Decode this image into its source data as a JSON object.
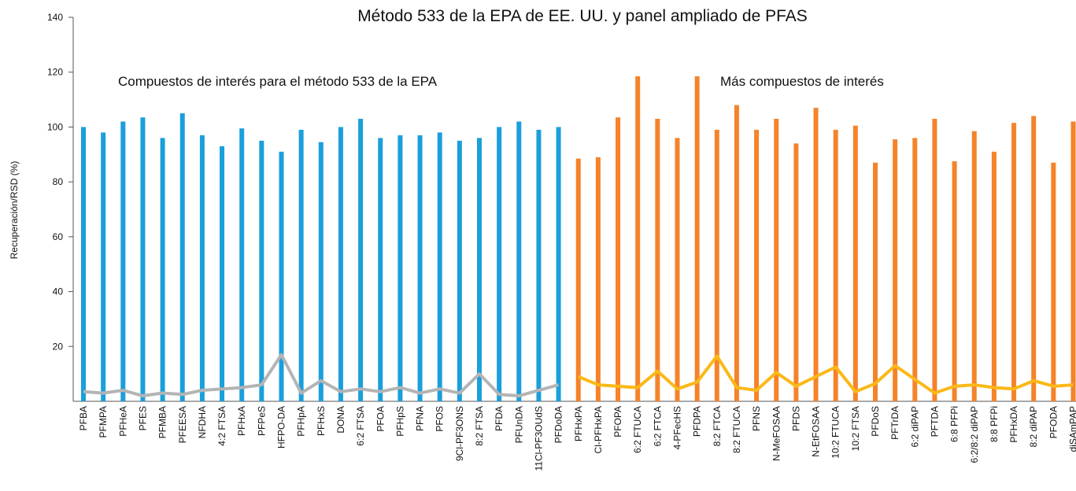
{
  "chart_data": {
    "type": "bar",
    "title": "Método 533 de la EPA de EE. UU. y panel ampliado de PFAS",
    "y_label": "Recuperación/RSD (%)",
    "annotations": [
      "Compuestos de interés para el método 533 de la EPA",
      "Más compuestos de interés"
    ],
    "categories": [
      "PFBA",
      "PFMPA",
      "PFHeA",
      "PFES",
      "PFMBA",
      "PFEESA",
      "NFDHA",
      "4:2 FTSA",
      "PFHxA",
      "PFPeS",
      "HFPO-DA",
      "PFHpA",
      "PFHxS",
      "DONA",
      "6:2 FTSA",
      "PFOA",
      "PFHpS",
      "PFNA",
      "PFOS",
      "9Cl-PF3ONS",
      "8:2 FTSA",
      "PFDA",
      "PFUnDA",
      "11Cl-PF3OUdS",
      "PFDoDA",
      "PFHxPA",
      "Cl-PFHxPA",
      "PFOPA",
      "6:2 FTUCA",
      "6:2 FTCA",
      "4-PFecHS",
      "PFDPA",
      "8:2 FTCA",
      "8:2 FTUCA",
      "PFNS",
      "N-MeFOSAA",
      "PFDS",
      "N-EtFOSAA",
      "10:2 FTUCA",
      "10:2 FTSA",
      "PFDoS",
      "PFTrDA",
      "6:2 diPAP",
      "PFTDA",
      "6:8 PFPi",
      "6:2/8:2 diPAP",
      "8:8 PFPi",
      "PFHxDA",
      "8:2 diPAP",
      "PFODA",
      "diSAmPAP"
    ],
    "series": [
      {
        "type": "bar",
        "color": "#1a9fdb",
        "values": [
          100,
          98,
          102,
          103.5,
          96,
          105,
          97,
          93,
          99.5,
          95,
          91,
          99,
          94.5,
          100,
          103,
          96,
          97,
          97,
          98,
          95,
          96,
          100,
          102,
          99,
          100,
          null,
          null,
          null,
          null,
          null,
          null,
          null,
          null,
          null,
          null,
          null,
          null,
          null,
          null,
          null,
          null,
          null,
          null,
          null,
          null,
          null,
          null,
          null,
          null,
          null,
          null
        ]
      },
      {
        "type": "bar",
        "color": "#f5832a",
        "values": [
          null,
          null,
          null,
          null,
          null,
          null,
          null,
          null,
          null,
          null,
          null,
          null,
          null,
          null,
          null,
          null,
          null,
          null,
          null,
          null,
          null,
          null,
          null,
          null,
          null,
          88.5,
          89,
          103.5,
          118.5,
          103,
          96,
          118.5,
          99,
          108,
          99,
          103,
          94,
          107,
          99,
          100.5,
          87,
          95.5,
          96,
          103,
          87.5,
          98.5,
          91,
          101.5,
          104,
          87,
          102
        ]
      },
      {
        "type": "line",
        "color": "#b4b4b4",
        "values": [
          3.5,
          3,
          4,
          2,
          3,
          2.5,
          4,
          4.5,
          5,
          6,
          17,
          3,
          7.5,
          3.5,
          4.5,
          3.5,
          5,
          3,
          4.5,
          3,
          10,
          2.5,
          2,
          4,
          6,
          null,
          null,
          null,
          null,
          null,
          null,
          null,
          null,
          null,
          null,
          null,
          null,
          null,
          null,
          null,
          null,
          null,
          null,
          null,
          null,
          null,
          null,
          null,
          null,
          null,
          null
        ]
      },
      {
        "type": "line",
        "color": "#fbb816",
        "values": [
          null,
          null,
          null,
          null,
          null,
          null,
          null,
          null,
          null,
          null,
          null,
          null,
          null,
          null,
          null,
          null,
          null,
          null,
          null,
          null,
          null,
          null,
          null,
          null,
          null,
          9,
          6,
          5.5,
          5,
          11,
          4.5,
          7,
          16.5,
          5,
          4,
          10.5,
          5.5,
          9,
          12.5,
          3.5,
          6.5,
          13,
          8,
          3,
          5.5,
          6,
          5,
          4.5,
          7.5,
          5.5,
          6
        ]
      }
    ],
    "ylim": [
      0,
      140
    ],
    "yticks": [
      20,
      40,
      60,
      80,
      100,
      120,
      140
    ]
  }
}
